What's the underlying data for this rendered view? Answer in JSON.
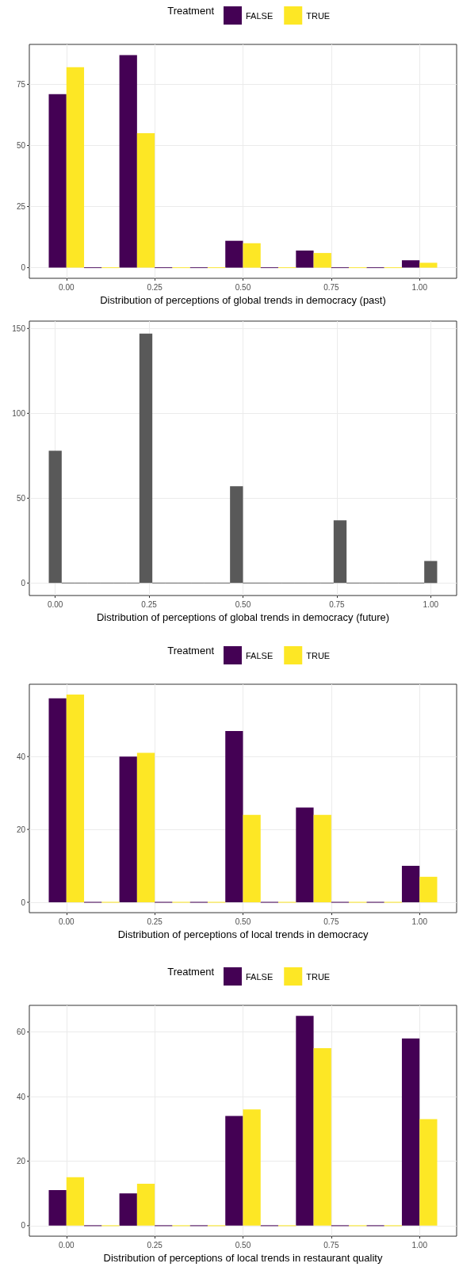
{
  "chart_data": [
    {
      "type": "histogram",
      "xlabel": "Distribution of perceptions of global trends in democracy (past)",
      "legend_title": "Treatment",
      "legend": "top",
      "bins": [
        -0.05,
        0.05,
        0.15,
        0.25,
        0.35,
        0.45,
        0.55,
        0.65,
        0.75,
        0.85,
        0.95,
        1.05
      ],
      "series": [
        {
          "name": "FALSE",
          "color": "#440154",
          "values": [
            71,
            0,
            87,
            0,
            0,
            11,
            0,
            7,
            0,
            0,
            3
          ]
        },
        {
          "name": "TRUE",
          "color": "#fde725",
          "values": [
            82,
            0,
            55,
            0,
            0,
            10,
            0,
            6,
            0,
            0,
            2
          ]
        }
      ],
      "xlim": [
        -0.105,
        1.105
      ],
      "xticks": [
        {
          "value": 0,
          "label": "0.00"
        },
        {
          "value": 0.25,
          "label": "0.25"
        },
        {
          "value": 0.5,
          "label": "0.50"
        },
        {
          "value": 0.75,
          "label": "0.75"
        },
        {
          "value": 1,
          "label": "1.00"
        }
      ],
      "ylim": [
        -4.35,
        91.35
      ],
      "yticks": [
        0,
        25,
        50,
        75
      ],
      "grid": true
    },
    {
      "type": "histogram",
      "xlabel": "Distribution of perceptions of global trends in democracy (future)",
      "bins": [
        -0.0172,
        0.0172,
        0.0517,
        0.0862,
        0.1207,
        0.1552,
        0.1897,
        0.2241,
        0.2586,
        0.2931,
        0.3276,
        0.3621,
        0.3966,
        0.431,
        0.4655,
        0.5,
        0.5345,
        0.569,
        0.6034,
        0.6379,
        0.6724,
        0.7069,
        0.7414,
        0.7759,
        0.8103,
        0.8448,
        0.8793,
        0.9138,
        0.9483,
        0.9828,
        1.0172
      ],
      "series": [
        {
          "color": "#595959",
          "values": [
            78,
            0,
            0,
            0,
            0,
            0,
            0,
            147,
            0,
            0,
            0,
            0,
            0,
            0,
            57,
            0,
            0,
            0,
            0,
            0,
            0,
            0,
            37,
            0,
            0,
            0,
            0,
            0,
            0,
            13
          ]
        }
      ],
      "xlim": [
        -0.069,
        1.069
      ],
      "xticks": [
        {
          "value": 0,
          "label": "0.00"
        },
        {
          "value": 0.25,
          "label": "0.25"
        },
        {
          "value": 0.5,
          "label": "0.50"
        },
        {
          "value": 0.75,
          "label": "0.75"
        },
        {
          "value": 1,
          "label": "1.00"
        }
      ],
      "ylim": [
        -7.35,
        154.35
      ],
      "yticks": [
        0,
        50,
        100,
        150
      ],
      "grid": true
    },
    {
      "type": "histogram",
      "xlabel": "Distribution of perceptions of local trends in democracy",
      "legend_title": "Treatment",
      "legend": "top",
      "bins": [
        -0.05,
        0.05,
        0.15,
        0.25,
        0.35,
        0.45,
        0.55,
        0.65,
        0.75,
        0.85,
        0.95,
        1.05
      ],
      "series": [
        {
          "name": "FALSE",
          "color": "#440154",
          "values": [
            56,
            0,
            40,
            0,
            0,
            47,
            0,
            26,
            0,
            0,
            10
          ]
        },
        {
          "name": "TRUE",
          "color": "#fde725",
          "values": [
            57,
            0,
            41,
            0,
            0,
            24,
            0,
            24,
            0,
            0,
            7
          ]
        }
      ],
      "xlim": [
        -0.105,
        1.105
      ],
      "xticks": [
        {
          "value": 0,
          "label": "0.00"
        },
        {
          "value": 0.25,
          "label": "0.25"
        },
        {
          "value": 0.5,
          "label": "0.50"
        },
        {
          "value": 0.75,
          "label": "0.75"
        },
        {
          "value": 1,
          "label": "1.00"
        }
      ],
      "ylim": [
        -2.85,
        59.85
      ],
      "yticks": [
        0,
        20,
        40
      ],
      "grid": true
    },
    {
      "type": "histogram",
      "xlabel": "Distribution of perceptions of local trends in restaurant quality",
      "legend_title": "Treatment",
      "legend": "top",
      "bins": [
        -0.05,
        0.05,
        0.15,
        0.25,
        0.35,
        0.45,
        0.55,
        0.65,
        0.75,
        0.85,
        0.95,
        1.05
      ],
      "series": [
        {
          "name": "FALSE",
          "color": "#440154",
          "values": [
            11,
            0,
            10,
            0,
            0,
            34,
            0,
            65,
            0,
            0,
            58
          ]
        },
        {
          "name": "TRUE",
          "color": "#fde725",
          "values": [
            15,
            0,
            13,
            0,
            0,
            36,
            0,
            55,
            0,
            0,
            33
          ]
        }
      ],
      "xlim": [
        -0.105,
        1.105
      ],
      "xticks": [
        {
          "value": 0,
          "label": "0.00"
        },
        {
          "value": 0.25,
          "label": "0.25"
        },
        {
          "value": 0.5,
          "label": "0.50"
        },
        {
          "value": 0.75,
          "label": "0.75"
        },
        {
          "value": 1,
          "label": "1.00"
        }
      ],
      "ylim": [
        -3.25,
        68.25
      ],
      "yticks": [
        0,
        20,
        40,
        60
      ],
      "grid": true
    }
  ]
}
